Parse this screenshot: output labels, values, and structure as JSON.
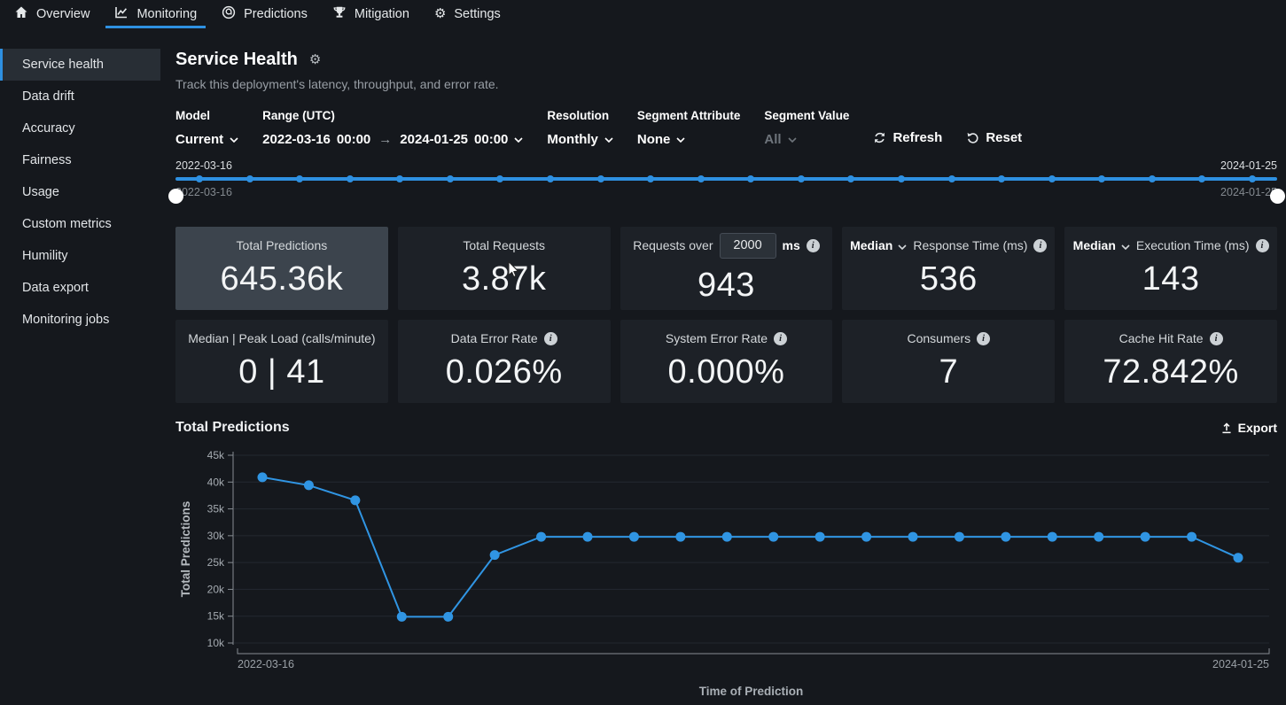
{
  "accent_color": "#2e90e1",
  "nav": {
    "items": [
      {
        "label": "Overview",
        "icon": "home-icon",
        "active": false
      },
      {
        "label": "Monitoring",
        "icon": "monitoring-chart-icon",
        "active": true
      },
      {
        "label": "Predictions",
        "icon": "predictions-icon",
        "active": false
      },
      {
        "label": "Mitigation",
        "icon": "trophy-icon",
        "active": false
      },
      {
        "label": "Settings",
        "icon": "gear-icon",
        "active": false
      }
    ]
  },
  "sidebar": {
    "items": [
      {
        "label": "Service health",
        "active": true
      },
      {
        "label": "Data drift",
        "active": false
      },
      {
        "label": "Accuracy",
        "active": false
      },
      {
        "label": "Fairness",
        "active": false
      },
      {
        "label": "Usage",
        "active": false
      },
      {
        "label": "Custom metrics",
        "active": false
      },
      {
        "label": "Humility",
        "active": false
      },
      {
        "label": "Data export",
        "active": false
      },
      {
        "label": "Monitoring jobs",
        "active": false
      }
    ]
  },
  "header": {
    "title": "Service Health",
    "subtitle": "Track this deployment's latency, throughput, and error rate."
  },
  "filters": {
    "model": {
      "label": "Model",
      "value": "Current"
    },
    "range": {
      "label": "Range (UTC)",
      "start_date": "2022-03-16",
      "start_time": "00:00",
      "arrow": "→",
      "end_date": "2024-01-25",
      "end_time": "00:00"
    },
    "resolution": {
      "label": "Resolution",
      "value": "Monthly"
    },
    "segment_attribute": {
      "label": "Segment Attribute",
      "value": "None"
    },
    "segment_value": {
      "label": "Segment Value",
      "value": "All"
    },
    "refresh_label": "Refresh",
    "reset_label": "Reset"
  },
  "timeline": {
    "start_label_top": "2022-03-16",
    "start_label_bottom": "2022-03-16",
    "end_label_top": "2024-01-25",
    "end_label_bottom": "2024-01-25",
    "dot_count": 22
  },
  "stats": {
    "cards": [
      {
        "label": "Total Predictions",
        "value": "645.36k",
        "selected": true
      },
      {
        "label": "Total Requests",
        "value": "3.87k"
      },
      {
        "prefix": "Requests over",
        "input": "2000",
        "suffix": "ms",
        "info": true,
        "value": "943"
      },
      {
        "agg": "Median",
        "label": "Response Time (ms)",
        "info": true,
        "value": "536"
      },
      {
        "agg": "Median",
        "label": "Execution Time (ms)",
        "info": true,
        "value": "143"
      },
      {
        "label": "Median | Peak Load (calls/minute)",
        "value": "0 | 41"
      },
      {
        "label": "Data Error Rate",
        "info": true,
        "value": "0.026%"
      },
      {
        "label": "System Error Rate",
        "info": true,
        "value": "0.000%"
      },
      {
        "label": "Consumers",
        "info": true,
        "value": "7"
      },
      {
        "label": "Cache Hit Rate",
        "info": true,
        "value": "72.842%"
      }
    ]
  },
  "chart_section": {
    "title": "Total Predictions",
    "export_label": "Export"
  },
  "chart_data": {
    "type": "line",
    "title": "Total Predictions",
    "xlabel": "Time of Prediction",
    "ylabel": "Total Predictions",
    "x_start_label": "2022-03-16",
    "x_end_label": "2024-01-25",
    "x": [
      "2022-04",
      "2022-05",
      "2022-06",
      "2022-07",
      "2022-08",
      "2022-09",
      "2022-10",
      "2022-11",
      "2022-12",
      "2023-01",
      "2023-02",
      "2023-03",
      "2023-04",
      "2023-05",
      "2023-06",
      "2023-07",
      "2023-08",
      "2023-09",
      "2023-10",
      "2023-11",
      "2023-12",
      "2024-01"
    ],
    "values": [
      40900,
      39400,
      36600,
      14900,
      14900,
      26400,
      29800,
      29800,
      29800,
      29800,
      29800,
      29800,
      29800,
      29800,
      29800,
      29800,
      29800,
      29800,
      29800,
      29800,
      29800,
      25900
    ],
    "ylim": [
      10000,
      45000
    ],
    "y_tick_step": 5000,
    "y_tick_labels": [
      "45k",
      "40k",
      "35k",
      "30k",
      "25k",
      "20k",
      "15k",
      "10k"
    ],
    "grid": true,
    "legend": "none",
    "line_color": "#3095e3"
  }
}
